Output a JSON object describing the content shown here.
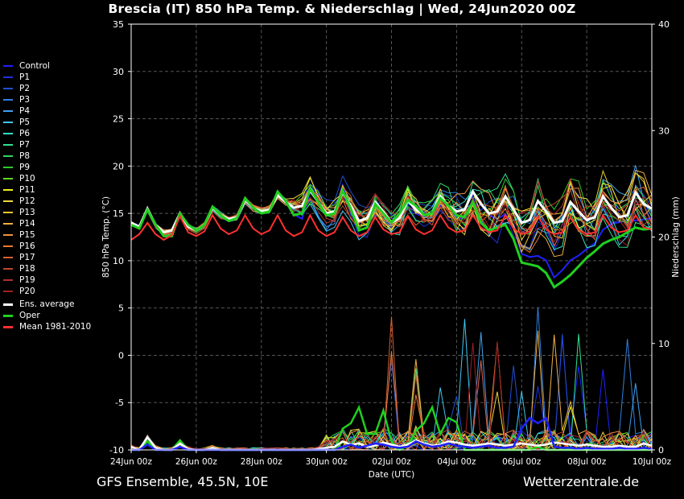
{
  "title": "Brescia  (IT)  850 hPa Temp. & Niederschlag | Wed, 24Jun2020 00Z",
  "footer_left": "GFS Ensemble, 45.5N, 10E",
  "footer_right": "Wetterzentrale.de",
  "legend": [
    {
      "label": "Control",
      "color": "#2020ff"
    },
    {
      "label": "P1",
      "color": "#2030e0"
    },
    {
      "label": "P2",
      "color": "#2050d0"
    },
    {
      "label": "P3",
      "color": "#3080e0"
    },
    {
      "label": "P4",
      "color": "#40a0f0"
    },
    {
      "label": "P5",
      "color": "#40c8f0"
    },
    {
      "label": "P6",
      "color": "#30e0c8"
    },
    {
      "label": "P7",
      "color": "#30e090"
    },
    {
      "label": "P8",
      "color": "#30d860"
    },
    {
      "label": "P9",
      "color": "#30c830"
    },
    {
      "label": "P10",
      "color": "#60d820"
    },
    {
      "label": "P11",
      "color": "#f0f020"
    },
    {
      "label": "P12",
      "color": "#f0d840"
    },
    {
      "label": "P13",
      "color": "#e8c830"
    },
    {
      "label": "P14",
      "color": "#f0b040"
    },
    {
      "label": "P15",
      "color": "#f09040"
    },
    {
      "label": "P16",
      "color": "#f07830"
    },
    {
      "label": "P17",
      "color": "#d86030"
    },
    {
      "label": "P18",
      "color": "#c04830"
    },
    {
      "label": "P19",
      "color": "#b03030"
    },
    {
      "label": "P20",
      "color": "#a02020"
    },
    {
      "label": "Ens. average",
      "color": "#ffffff"
    },
    {
      "label": "Oper",
      "color": "#20d020"
    },
    {
      "label": "Mean 1981-2010",
      "color": "#ff3030"
    }
  ],
  "chart_data": {
    "type": "line",
    "title": "Brescia  (IT)  850 hPa Temp. & Niederschlag | Wed, 24Jun2020 00Z",
    "xlabel": "Date (UTC)",
    "ylabel": "850 hPa Temp. (°C)",
    "y2label": "Niederschlag (mm)",
    "xlim": [
      0,
      64
    ],
    "ylim": [
      -10,
      35
    ],
    "y2lim": [
      0,
      40
    ],
    "x_ticks": [
      {
        "x": 0,
        "label": "24Jun 00z"
      },
      {
        "x": 8,
        "label": "26Jun 00z"
      },
      {
        "x": 16,
        "label": "28Jun 00z"
      },
      {
        "x": 24,
        "label": "30Jun 00z"
      },
      {
        "x": 32,
        "label": "02Jul 00z"
      },
      {
        "x": 40,
        "label": "04Jul 00z"
      },
      {
        "x": 48,
        "label": "06Jul 00z"
      },
      {
        "x": 56,
        "label": "08Jul 00z"
      },
      {
        "x": 64,
        "label": "10Jul 00z"
      }
    ],
    "y_ticks": [
      -10,
      -5,
      0,
      5,
      10,
      15,
      20,
      25,
      30,
      35
    ],
    "y2_ticks": [
      0,
      10,
      20,
      30,
      40
    ],
    "grid": true,
    "x_step_hours": 6,
    "temperature_series": [
      {
        "name": "Ens. average",
        "values": [
          14,
          13.6,
          15.5,
          13.8,
          13,
          13.2,
          15,
          13.6,
          13.2,
          13.8,
          15.6,
          14.8,
          14.4,
          14.6,
          16.4,
          15.6,
          15.2,
          15.4,
          16.9,
          16.2,
          15.6,
          15.8,
          17.4,
          16.2,
          15,
          15.2,
          17.2,
          15.8,
          14.2,
          14.5,
          16.2,
          15.2,
          14,
          14.5,
          16.4,
          15.4,
          14.8,
          15,
          16.8,
          15.8,
          15.2,
          15.4,
          17.3,
          16,
          15,
          15.2,
          16.8,
          15.4,
          14,
          14.3,
          16.3,
          15.2,
          14,
          14.2,
          16.2,
          15.2,
          14.3,
          14.6,
          16.8,
          15.6,
          14.6,
          14.8,
          17.2,
          16,
          15.5
        ]
      },
      {
        "name": "Oper",
        "values": [
          13.8,
          13.4,
          15.4,
          13.8,
          12.6,
          12.6,
          15,
          13.8,
          13.2,
          13.8,
          15.7,
          14.8,
          14.2,
          14.5,
          16.6,
          15.6,
          15,
          15.2,
          17.3,
          16.3,
          14.8,
          15,
          17.6,
          16.2,
          14.8,
          15,
          17.4,
          15.5,
          13.2,
          13.5,
          16,
          15,
          14,
          15,
          16.4,
          15.8,
          14.8,
          15,
          16.6,
          15.8,
          14.8,
          14.6,
          16.2,
          14,
          13.2,
          13.5,
          13.8,
          12.3,
          9.8,
          9.6,
          9.4,
          8.7,
          7.2,
          7.8,
          8.5,
          9.4,
          10.3,
          11,
          11.8,
          12.2,
          12.5,
          13,
          13.5,
          13.3,
          13.4
        ]
      },
      {
        "name": "Mean 1981-2010",
        "values": [
          12.2,
          12.8,
          14,
          12.8,
          12.2,
          12.7,
          14.7,
          13,
          12.6,
          13.1,
          14.8,
          13.4,
          12.8,
          13.2,
          14.8,
          13.4,
          12.8,
          13.2,
          14.8,
          13.2,
          12.6,
          13,
          14.8,
          13.2,
          12.6,
          13,
          14.6,
          13.2,
          12.6,
          13,
          14.6,
          13.3,
          12.8,
          13,
          14.7,
          13.3,
          12.8,
          13.2,
          14.8,
          13.5,
          13,
          13.2,
          14.8,
          13.5,
          13,
          13.2,
          14.8,
          13.4,
          12.8,
          13.1,
          14.7,
          13.3,
          12.8,
          13,
          14.6,
          13.3,
          12.8,
          13,
          14.8,
          13.5,
          13,
          13.2,
          14.8,
          13.5,
          13.3
        ]
      }
    ],
    "precipitation_series": [
      {
        "name": "Oper",
        "values": [
          0,
          0,
          0.8,
          0,
          0,
          0,
          0.9,
          0,
          0,
          0,
          0.2,
          0,
          0,
          0,
          0,
          0,
          0,
          0,
          0,
          0,
          0,
          0,
          0,
          0,
          0,
          0,
          2,
          2.5,
          4,
          1.5,
          1.5,
          3.7,
          0.8,
          0,
          0.4,
          1.8,
          2.5,
          4,
          1.5,
          3,
          2.6,
          0,
          0,
          0,
          0,
          0,
          0,
          0,
          0,
          0,
          0.3,
          0,
          0,
          0,
          0,
          0,
          0,
          0,
          0,
          0,
          0,
          0,
          0,
          0,
          0
        ]
      },
      {
        "name": "Ens. average",
        "values": [
          0.3,
          0,
          1.2,
          0.2,
          0,
          0,
          0.6,
          0.1,
          0,
          0,
          0.2,
          0,
          0,
          0,
          0,
          0,
          0,
          0,
          0,
          0,
          0,
          0,
          0,
          0.1,
          0.2,
          0.3,
          0.8,
          0.5,
          0.6,
          0.3,
          0.4,
          0.7,
          0.5,
          0.3,
          0.5,
          0.9,
          0.6,
          0.4,
          0.5,
          0.8,
          0.7,
          0.5,
          0.4,
          0.5,
          0.6,
          0.5,
          0.4,
          0.5,
          0.6,
          0.5,
          0.4,
          0.5,
          0.7,
          0.6,
          0.5,
          0.4,
          0.5,
          0.4,
          0.3,
          0.3,
          0.4,
          0.3,
          0.3,
          0.6,
          0.4
        ]
      },
      {
        "name": "Control",
        "values": [
          0,
          0,
          0.5,
          0,
          0,
          0,
          0.3,
          0,
          0,
          0,
          0,
          0,
          0,
          0,
          0,
          0,
          0,
          0,
          0,
          0,
          0,
          0,
          0,
          0,
          0,
          0,
          0.3,
          0.5,
          0.2,
          0.4,
          0.6,
          0.5,
          0.3,
          0.2,
          0.3,
          0.8,
          0.5,
          0.3,
          0.4,
          0.6,
          0.4,
          0.3,
          0.2,
          0.3,
          0.4,
          0.2,
          0.2,
          0.3,
          2,
          3,
          2.5,
          3,
          0.3,
          0.2,
          0.2,
          0.1,
          0.2,
          0.1,
          0.1,
          0.1,
          0.2,
          0.1,
          0.1,
          0.2,
          0.1
        ]
      }
    ]
  }
}
